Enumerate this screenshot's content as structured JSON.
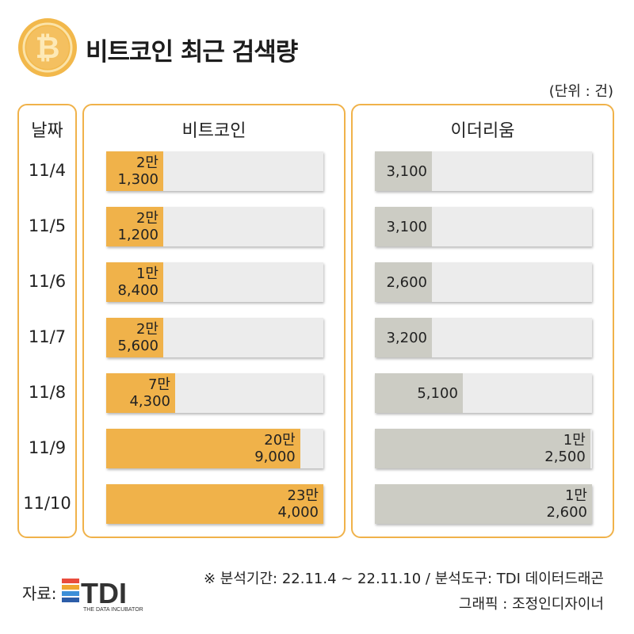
{
  "header": {
    "title": "비트코인 최근 검색량",
    "unit": "(단위 : 건)",
    "coin_icon": "bitcoin-coin-icon"
  },
  "columns": {
    "date_header": "날짜",
    "btc_header": "비트코인",
    "eth_header": "이더리움"
  },
  "chart_data": {
    "type": "bar",
    "categories": [
      "11/4",
      "11/5",
      "11/6",
      "11/7",
      "11/8",
      "11/9",
      "11/10"
    ],
    "series": [
      {
        "name": "비트코인",
        "values": [
          21300,
          21200,
          18400,
          25600,
          74300,
          209000,
          234000
        ],
        "labels": [
          [
            "2만",
            "1,300"
          ],
          [
            "2만",
            "1,200"
          ],
          [
            "1만",
            "8,400"
          ],
          [
            "2만",
            "5,600"
          ],
          [
            "7만",
            "4,300"
          ],
          [
            "20만",
            "9,000"
          ],
          [
            "23만",
            "4,000"
          ]
        ],
        "color": "#f0b24a",
        "max": 234000
      },
      {
        "name": "이더리움",
        "values": [
          3100,
          3100,
          2600,
          3200,
          5100,
          12500,
          12600
        ],
        "labels": [
          [
            "3,100"
          ],
          [
            "3,100"
          ],
          [
            "2,600"
          ],
          [
            "3,200"
          ],
          [
            "5,100"
          ],
          [
            "1만",
            "2,500"
          ],
          [
            "1만",
            "2,600"
          ]
        ],
        "color": "#ccccc4",
        "max": 12600
      }
    ]
  },
  "footer": {
    "source_label": "자료:",
    "logo_text": "TDI",
    "logo_subtext": "THE DATA INCUBATOR",
    "analysis_note": "※ 분석기간: 22.11.4 ~ 22.11.10 / 분석도구: TDI 데이터드래곤",
    "graphic_credit": "그래픽 : 조정인디자이너"
  }
}
